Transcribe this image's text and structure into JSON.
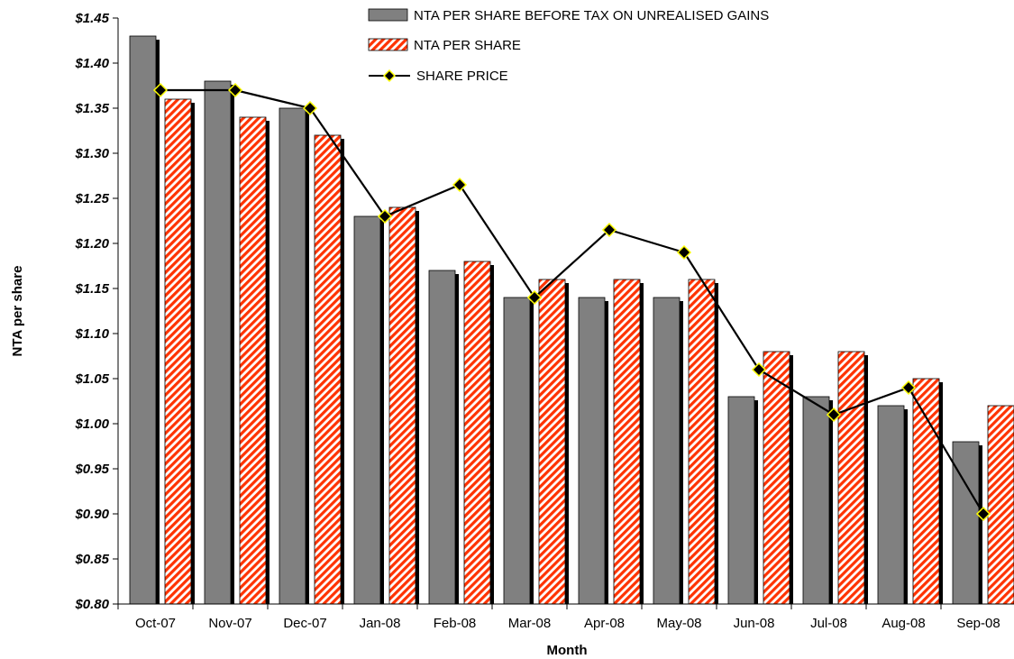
{
  "chart_data": {
    "type": "bar",
    "title": "",
    "xlabel": "Month",
    "ylabel": "NTA per share",
    "ylim": [
      0.8,
      1.45
    ],
    "yticks": [
      "$1.45",
      "$1.40",
      "$1.35",
      "$1.30",
      "$1.25",
      "$1.20",
      "$1.15",
      "$1.10",
      "$1.05",
      "$1.00",
      "$0.95",
      "$0.90",
      "$0.85",
      "$0.80"
    ],
    "categories": [
      "Oct-07",
      "Nov-07",
      "Dec-07",
      "Jan-08",
      "Feb-08",
      "Mar-08",
      "Apr-08",
      "May-08",
      "Jun-08",
      "Jul-08",
      "Aug-08",
      "Sep-08"
    ],
    "series": [
      {
        "name": "NTA PER SHARE BEFORE TAX ON UNREALISED GAINS",
        "kind": "bar",
        "color": "#808080",
        "values": [
          1.43,
          1.38,
          1.35,
          1.23,
          1.17,
          1.14,
          1.14,
          1.14,
          1.03,
          1.03,
          1.02,
          0.98
        ]
      },
      {
        "name": "NTA PER SHARE",
        "kind": "bar",
        "color": "#ff3300",
        "pattern": "diagonal-stripes",
        "values": [
          1.36,
          1.34,
          1.32,
          1.24,
          1.18,
          1.16,
          1.16,
          1.16,
          1.08,
          1.08,
          1.05,
          1.02
        ]
      },
      {
        "name": "SHARE PRICE",
        "kind": "line",
        "color": "#000000",
        "marker_color": "#ffff00",
        "values": [
          1.37,
          1.37,
          1.35,
          1.23,
          1.265,
          1.14,
          1.215,
          1.19,
          1.06,
          1.01,
          1.04,
          0.9
        ]
      }
    ],
    "legend_position": "top-right",
    "grid": false
  }
}
